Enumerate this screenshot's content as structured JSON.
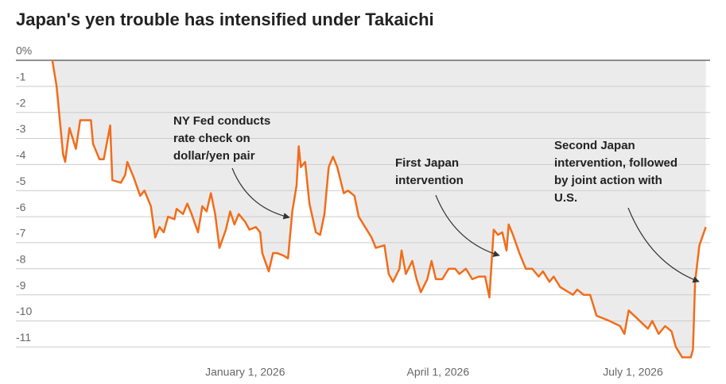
{
  "chart_data": {
    "type": "line",
    "title": "Japan's yen trouble has intensified under Takaichi",
    "x": [
      "2025-10-03",
      "2025-10-05",
      "2025-10-08",
      "2025-10-09",
      "2025-10-11",
      "2025-10-14",
      "2025-10-16",
      "2025-10-18",
      "2025-10-21",
      "2025-10-22",
      "2025-10-25",
      "2025-10-27",
      "2025-10-30",
      "2025-10-31",
      "2025-11-04",
      "2025-11-06",
      "2025-11-07",
      "2025-11-10",
      "2025-11-13",
      "2025-11-15",
      "2025-11-18",
      "2025-11-20",
      "2025-11-22",
      "2025-11-24",
      "2025-11-26",
      "2025-11-29",
      "2025-11-30",
      "2025-12-03",
      "2025-12-05",
      "2025-12-07",
      "2025-12-10",
      "2025-12-12",
      "2025-12-14",
      "2025-12-16",
      "2025-12-18",
      "2025-12-20",
      "2025-12-23",
      "2025-12-25",
      "2025-12-27",
      "2025-12-29",
      "2026-01-01",
      "2026-01-03",
      "2026-01-06",
      "2026-01-08",
      "2026-01-09",
      "2026-01-12",
      "2026-01-14",
      "2026-01-16",
      "2026-01-19",
      "2026-01-21",
      "2026-01-23",
      "2026-01-25",
      "2026-01-26",
      "2026-01-27",
      "2026-01-29",
      "2026-01-31",
      "2026-02-03",
      "2026-02-05",
      "2026-02-07",
      "2026-02-09",
      "2026-02-11",
      "2026-02-13",
      "2026-02-16",
      "2026-02-18",
      "2026-02-21",
      "2026-02-23",
      "2026-02-26",
      "2026-03-01",
      "2026-03-03",
      "2026-03-07",
      "2026-03-09",
      "2026-03-11",
      "2026-03-14",
      "2026-03-15",
      "2026-03-17",
      "2026-03-20",
      "2026-03-22",
      "2026-03-24",
      "2026-03-27",
      "2026-03-29",
      "2026-03-31",
      "2026-04-03",
      "2026-04-06",
      "2026-04-09",
      "2026-04-11",
      "2026-04-14",
      "2026-04-17",
      "2026-04-20",
      "2026-04-23",
      "2026-04-25",
      "2026-04-27",
      "2026-04-29",
      "2026-05-01",
      "2026-05-03",
      "2026-05-04",
      "2026-05-06",
      "2026-05-09",
      "2026-05-12",
      "2026-05-15",
      "2026-05-18",
      "2026-05-20",
      "2026-05-23",
      "2026-05-25",
      "2026-05-28",
      "2026-06-01",
      "2026-06-03",
      "2026-06-05",
      "2026-06-08",
      "2026-06-11",
      "2026-06-14",
      "2026-06-17",
      "2026-06-20",
      "2026-06-25",
      "2026-06-27",
      "2026-06-29",
      "2026-07-08",
      "2026-07-10",
      "2026-07-13",
      "2026-07-16",
      "2026-07-19",
      "2026-07-21",
      "2026-07-24",
      "2026-07-28",
      "2026-07-29",
      "2026-07-30",
      "2026-08-01",
      "2026-08-04"
    ],
    "series": [
      {
        "color": "#f26c1a",
        "values": [
          0,
          -1.0,
          -3.6,
          -3.9,
          -2.6,
          -3.4,
          -2.3,
          -2.3,
          -2.3,
          -3.2,
          -3.8,
          -3.8,
          -2.5,
          -4.6,
          -4.7,
          -4.4,
          -3.9,
          -4.5,
          -5.2,
          -5.0,
          -5.6,
          -6.8,
          -6.4,
          -6.6,
          -6.0,
          -6.1,
          -5.7,
          -5.9,
          -5.5,
          -5.9,
          -6.6,
          -5.6,
          -5.8,
          -5.1,
          -5.9,
          -7.2,
          -6.5,
          -5.8,
          -6.3,
          -5.9,
          -6.2,
          -6.5,
          -6.4,
          -6.6,
          -7.4,
          -8.1,
          -7.4,
          -7.4,
          -7.5,
          -7.6,
          -5.8,
          -4.8,
          -3.3,
          -4.1,
          -3.9,
          -5.5,
          -6.6,
          -6.7,
          -5.9,
          -4.1,
          -3.7,
          -4.1,
          -5.1,
          -5.0,
          -5.2,
          -6.0,
          -6.4,
          -6.8,
          -7.2,
          -7.1,
          -8.2,
          -8.5,
          -8.0,
          -7.3,
          -8.2,
          -7.7,
          -8.4,
          -8.9,
          -8.4,
          -7.7,
          -8.4,
          -8.4,
          -8.0,
          -8.0,
          -8.2,
          -8.0,
          -8.4,
          -8.3,
          -8.3,
          -9.1,
          -6.5,
          -6.7,
          -6.6,
          -7.3,
          -6.3,
          -6.7,
          -7.4,
          -8.0,
          -8.0,
          -8.3,
          -8.1,
          -8.5,
          -8.3,
          -8.7,
          -8.9,
          -9.0,
          -8.8,
          -9.0,
          -9.0,
          -9.8,
          -9.9,
          -10.0,
          -10.2,
          -10.5,
          -9.6,
          -10.3,
          -10.0,
          -10.5,
          -10.2,
          -10.4,
          -11.0,
          -11.4,
          -11.4,
          -11.1,
          -8.5,
          -7.1,
          -6.4
        ]
      }
    ],
    "xlim": [
      "2025-09-16",
      "2026-08-06"
    ],
    "xticks": [
      {
        "value": "2026-01-01",
        "label": "January 1, 2026"
      },
      {
        "value": "2026-04-01",
        "label": "April 1, 2026"
      },
      {
        "value": "2026-07-01",
        "label": "July 1, 2026"
      }
    ],
    "ylim": [
      -11.6,
      0
    ],
    "yticks": [
      {
        "value": 0,
        "label": "0%"
      },
      -1,
      -2,
      -3,
      -4,
      -5,
      -6,
      -7,
      -8,
      -9,
      -10,
      -11
    ],
    "grid": true,
    "fill": "#ebebeb",
    "annotations": [
      {
        "text": [
          "NY Fed conducts",
          "rate check on",
          "dollar/yen pair"
        ]
      },
      {
        "text": [
          "First Japan",
          "intervention"
        ]
      },
      {
        "text": [
          "Second Japan",
          "intervention, followed",
          "by joint action with",
          "U.S."
        ]
      }
    ]
  }
}
